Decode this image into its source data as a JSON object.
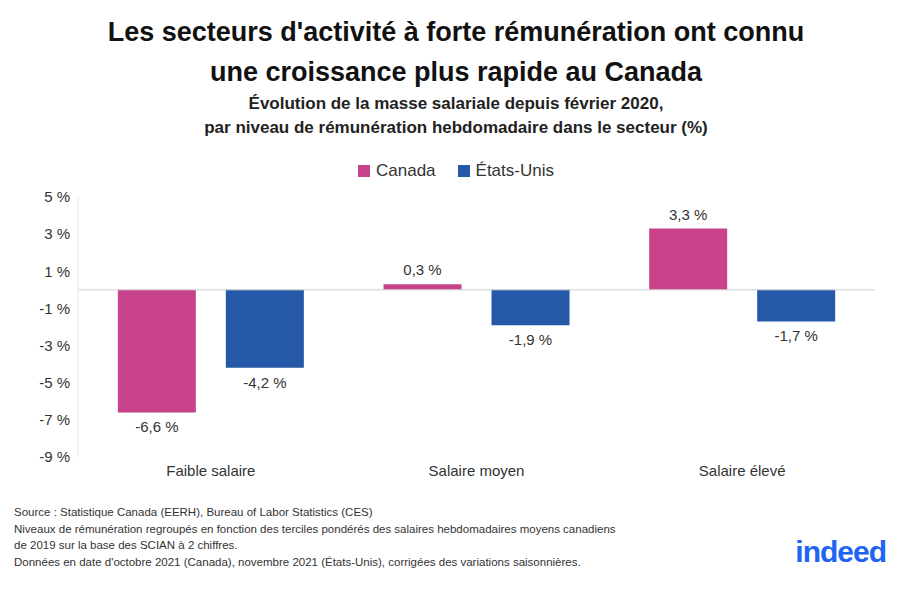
{
  "chart_data": {
    "type": "bar",
    "title": [
      "Les secteurs d'activité à forte rémunération ont connu",
      "une croissance plus rapide au Canada"
    ],
    "subtitle": [
      "Évolution de la masse salariale depuis février 2020,",
      "par niveau de rémunération hebdomadaire dans le secteur (%)"
    ],
    "categories": [
      "Faible salaire",
      "Salaire moyen",
      "Salaire élevé"
    ],
    "series": [
      {
        "name": "Canada",
        "color": "#c8438c",
        "values": [
          -6.6,
          0.3,
          3.3
        ],
        "value_labels": [
          "-6,6 %",
          "0,3 %",
          "3,3 %"
        ]
      },
      {
        "name": "États-Unis",
        "color": "#2558a6",
        "values": [
          -4.2,
          -1.9,
          -1.7
        ],
        "value_labels": [
          "-4,2 %",
          "-1,9 %",
          "-1,7 %"
        ]
      }
    ],
    "ylim": [
      -9,
      5
    ],
    "yticks": [
      {
        "value": 5,
        "label": "5 %"
      },
      {
        "value": 3,
        "label": "3 %"
      },
      {
        "value": 1,
        "label": "1 %"
      },
      {
        "value": -1,
        "label": "-1 %"
      },
      {
        "value": -3,
        "label": "-3 %"
      },
      {
        "value": -5,
        "label": "-5 %"
      },
      {
        "value": -7,
        "label": "-7 %"
      },
      {
        "value": -9,
        "label": "-9 %"
      }
    ],
    "grid": false,
    "legend": "top",
    "data_labels": true,
    "footnotes": [
      "Source : Statistique Canada (EERH), Bureau of Labor Statistics (CES)",
      "Niveaux de rémunération regroupés en fonction des terciles pondérés des salaires hebdomadaires moyens canadiens",
      "de 2019 sur la base des SCIAN à 2 chiffres.",
      "Données en date d'octobre 2021 (Canada), novembre 2021 (États-Unis), corrigées des variations saisonnières."
    ],
    "logo": "indeed"
  }
}
